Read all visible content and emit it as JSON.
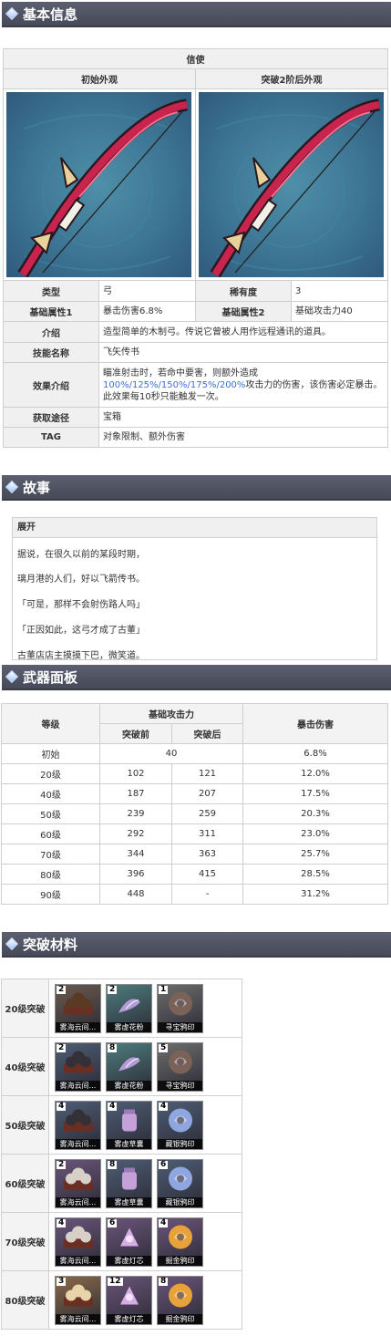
{
  "sections": {
    "basic": "基本信息",
    "story": "故事",
    "panel": "武器面板",
    "materials": "突破材料"
  },
  "info": {
    "name": "信使",
    "appearance_initial": "初始外观",
    "appearance_ascended": "突破2阶后外观",
    "rows": {
      "type_label": "类型",
      "type_value": "弓",
      "rarity_label": "稀有度",
      "rarity_value": "3",
      "base1_label": "基础属性1",
      "base1_value": "暴击伤害6.8%",
      "base2_label": "基础属性2",
      "base2_value": "基础攻击力40",
      "intro_label": "介绍",
      "intro_value": "造型简单的木制弓。传说它曾被人用作远程通讯的道具。",
      "skill_label": "技能名称",
      "skill_value": "飞矢传书",
      "effect_label": "效果介绍",
      "effect_line1": "瞄准射击时，若命中要害，则额外造成",
      "effect_blue": "100%/125%/150%/175%/200%",
      "effect_line2": "攻击力的伤害，该伤害必定暴击。此效果每10秒只能触发一次。",
      "source_label": "获取途径",
      "source_value": "宝箱",
      "tag_label": "TAG",
      "tag_value": "对象限制、额外伤害"
    },
    "colors": {
      "bow_body": "#c8244e",
      "bow_dark": "#2a1820",
      "bow_gold": "#e8d29a",
      "bg": "#3d7593"
    }
  },
  "story": {
    "expand": "展开",
    "lines": [
      "据说，在很久以前的某段时期，",
      "璃月港的人们，好以飞箭传书。",
      "「可是，那样不会射伤路人吗」",
      "「正因如此，这弓才成了古董」",
      "古董店店主摸摸下巴，微笑道。"
    ]
  },
  "stats": {
    "headers": {
      "level": "等级",
      "base_atk": "基础攻击力",
      "before": "突破前",
      "after": "突破后",
      "crit": "暴击伤害"
    },
    "initial": {
      "level": "初始",
      "atk": "40",
      "crit": "6.8%"
    },
    "rows": [
      {
        "level": "20级",
        "before": "102",
        "after": "121",
        "crit": "12.0%"
      },
      {
        "level": "40级",
        "before": "187",
        "after": "207",
        "crit": "17.5%"
      },
      {
        "level": "50级",
        "before": "239",
        "after": "259",
        "crit": "20.3%"
      },
      {
        "level": "60级",
        "before": "292",
        "after": "311",
        "crit": "23.0%"
      },
      {
        "level": "70级",
        "before": "344",
        "after": "363",
        "crit": "25.7%"
      },
      {
        "level": "80级",
        "before": "396",
        "after": "415",
        "crit": "28.5%"
      },
      {
        "level": "90级",
        "before": "448",
        "after": "-",
        "crit": "31.2%"
      }
    ]
  },
  "materials": [
    {
      "level": "20级突破",
      "items": [
        {
          "count": "2",
          "name": "雾海云间...",
          "icon": "cloud-orb-icon",
          "bg": "#6a5a4e",
          "color": "#5a3a22"
        },
        {
          "count": "2",
          "name": "雾虚花粉",
          "icon": "pollen-icon",
          "bg": "#4d7d7e",
          "color": "#b49ad6"
        },
        {
          "count": "1",
          "name": "寻宝鸦印",
          "icon": "crow-insignia-icon",
          "bg": "#6e6e6e",
          "color": "#7a6258"
        }
      ]
    },
    {
      "level": "40级突破",
      "items": [
        {
          "count": "2",
          "name": "雾海云间...",
          "icon": "cloud-orb-icon",
          "bg": "#4e5d75",
          "color": "#333038"
        },
        {
          "count": "8",
          "name": "雾虚花粉",
          "icon": "pollen-icon",
          "bg": "#4d7d7e",
          "color": "#b49ad6"
        },
        {
          "count": "5",
          "name": "寻宝鸦印",
          "icon": "crow-insignia-icon",
          "bg": "#6e6e6e",
          "color": "#7a6258"
        }
      ]
    },
    {
      "level": "50级突破",
      "items": [
        {
          "count": "4",
          "name": "雾海云间...",
          "icon": "cloud-orb-icon",
          "bg": "#4e5d75",
          "color": "#333038"
        },
        {
          "count": "4",
          "name": "雾虚草囊",
          "icon": "pouch-icon",
          "bg": "#4e5d75",
          "color": "#c6a0d8"
        },
        {
          "count": "4",
          "name": "藏银鸦印",
          "icon": "crow-insignia-icon",
          "bg": "#4e5d75",
          "color": "#8fa6e0"
        }
      ]
    },
    {
      "level": "60级突破",
      "items": [
        {
          "count": "2",
          "name": "雾海云间...",
          "icon": "cloud-orb-icon",
          "bg": "#6b557a",
          "color": "#d8d0c8"
        },
        {
          "count": "8",
          "name": "雾虚草囊",
          "icon": "pouch-icon",
          "bg": "#4e5d75",
          "color": "#c6a0d8"
        },
        {
          "count": "6",
          "name": "藏银鸦印",
          "icon": "crow-insignia-icon",
          "bg": "#4e5d75",
          "color": "#8fa6e0"
        }
      ]
    },
    {
      "level": "70级突破",
      "items": [
        {
          "count": "4",
          "name": "雾海云间...",
          "icon": "cloud-orb-icon",
          "bg": "#6b557a",
          "color": "#d8d0c8"
        },
        {
          "count": "6",
          "name": "雾虚灯芯",
          "icon": "lamp-wick-icon",
          "bg": "#6b557a",
          "color": "#d6aee6"
        },
        {
          "count": "4",
          "name": "掘金鸦印",
          "icon": "crow-insignia-icon",
          "bg": "#6b557a",
          "color": "#e8a23a"
        }
      ]
    },
    {
      "level": "80级突破",
      "items": [
        {
          "count": "3",
          "name": "雾海云间...",
          "icon": "cloud-orb-icon",
          "bg": "#8a6a48",
          "color": "#e8d4a8"
        },
        {
          "count": "12",
          "name": "雾虚灯芯",
          "icon": "lamp-wick-icon",
          "bg": "#6b557a",
          "color": "#d6aee6"
        },
        {
          "count": "8",
          "name": "掘金鸦印",
          "icon": "crow-insignia-icon",
          "bg": "#6b557a",
          "color": "#e8a23a"
        }
      ]
    }
  ]
}
